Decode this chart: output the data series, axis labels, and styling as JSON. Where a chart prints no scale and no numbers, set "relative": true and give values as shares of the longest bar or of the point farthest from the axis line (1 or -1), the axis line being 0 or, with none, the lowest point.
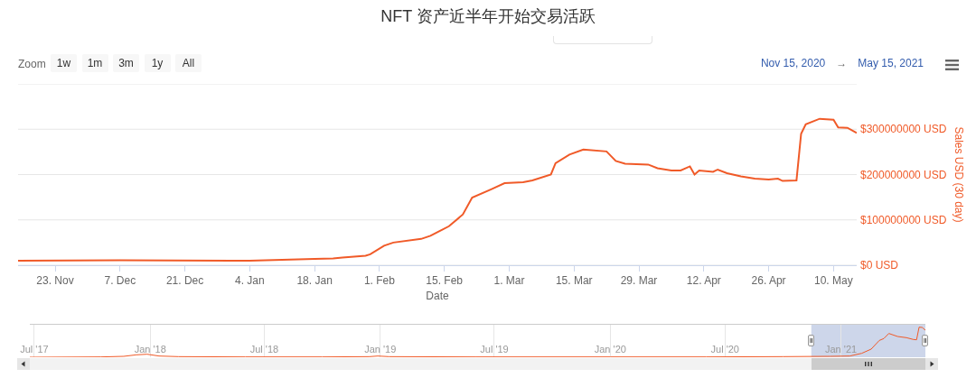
{
  "chart_data": [
    {
      "type": "line",
      "title": "NFT 资产近半年开始交易活跃",
      "xlabel": "Date",
      "ylabel": "Sales USD (30 day)",
      "color": "#f05a28",
      "x": [
        "2020-11-15",
        "2020-12-07",
        "2021-01-04",
        "2021-01-18",
        "2021-01-22",
        "2021-01-24",
        "2021-01-29",
        "2021-01-30",
        "2021-02-02",
        "2021-02-04",
        "2021-02-10",
        "2021-02-12",
        "2021-02-16",
        "2021-02-19",
        "2021-02-21",
        "2021-02-25",
        "2021-02-28",
        "2021-03-04",
        "2021-03-06",
        "2021-03-10",
        "2021-03-11",
        "2021-03-14",
        "2021-03-17",
        "2021-03-22",
        "2021-03-24",
        "2021-03-26",
        "2021-03-31",
        "2021-04-02",
        "2021-04-05",
        "2021-04-07",
        "2021-04-09",
        "2021-04-10",
        "2021-04-11",
        "2021-04-14",
        "2021-04-15",
        "2021-04-17",
        "2021-04-20",
        "2021-04-23",
        "2021-04-26",
        "2021-04-28",
        "2021-04-29",
        "2021-05-02",
        "2021-05-03",
        "2021-05-04",
        "2021-05-07",
        "2021-05-10",
        "2021-05-11",
        "2021-05-13",
        "2021-05-15"
      ],
      "values": [
        10000000,
        11000000,
        10000000,
        14000000,
        15000000,
        17000000,
        21000000,
        24000000,
        43000000,
        50000000,
        58000000,
        65000000,
        86000000,
        112000000,
        149000000,
        167000000,
        181000000,
        183000000,
        187000000,
        200000000,
        225000000,
        244000000,
        255000000,
        251000000,
        230000000,
        224000000,
        222000000,
        214000000,
        209000000,
        209000000,
        218000000,
        200000000,
        209000000,
        206000000,
        211000000,
        203000000,
        196000000,
        191000000,
        189000000,
        191000000,
        186000000,
        187000000,
        290000000,
        311000000,
        323000000,
        321000000,
        304000000,
        303000000,
        292000000
      ],
      "xlim": [
        "2020-11-15",
        "2021-05-15"
      ],
      "xticks": [
        {
          "value": "2020-11-23",
          "label": "23. Nov"
        },
        {
          "value": "2020-12-07",
          "label": "7. Dec"
        },
        {
          "value": "2020-12-21",
          "label": "21. Dec"
        },
        {
          "value": "2021-01-04",
          "label": "4. Jan"
        },
        {
          "value": "2021-01-18",
          "label": "18. Jan"
        },
        {
          "value": "2021-02-01",
          "label": "1. Feb"
        },
        {
          "value": "2021-02-15",
          "label": "15. Feb"
        },
        {
          "value": "2021-03-01",
          "label": "1. Mar"
        },
        {
          "value": "2021-03-15",
          "label": "15. Mar"
        },
        {
          "value": "2021-03-29",
          "label": "29. Mar"
        },
        {
          "value": "2021-04-12",
          "label": "12. Apr"
        },
        {
          "value": "2021-04-26",
          "label": "26. Apr"
        },
        {
          "value": "2021-05-10",
          "label": "10. May"
        }
      ],
      "ylim": [
        0,
        400000000
      ],
      "yticks": [
        {
          "value": 0,
          "label": "$0 USD"
        },
        {
          "value": 100000000,
          "label": "$100000000 USD"
        },
        {
          "value": 200000000,
          "label": "$200000000 USD"
        },
        {
          "value": 300000000,
          "label": "$300000000 USD"
        },
        {
          "value": 400000000,
          "label": null
        }
      ],
      "grid": "y",
      "annotations": [
        "Zoom",
        "1w",
        "1m",
        "3m",
        "1y",
        "All",
        "Nov 15, 2020",
        "→",
        "May 15, 2021"
      ]
    },
    {
      "type": "line",
      "relative": true,
      "color": "#f05a28",
      "x": [
        "2017-06-24",
        "2017-10-15",
        "2017-11-20",
        "2017-12-10",
        "2017-12-27",
        "2018-01-15",
        "2018-02-15",
        "2018-06-01",
        "2018-10-01",
        "2018-12-15",
        "2018-12-28",
        "2019-01-15",
        "2019-06-01",
        "2020-01-01",
        "2020-06-01",
        "2020-10-01",
        "2020-12-15",
        "2021-01-15",
        "2021-02-03",
        "2021-02-18",
        "2021-03-03",
        "2021-03-10",
        "2021-03-18",
        "2021-04-01",
        "2021-04-15",
        "2021-04-26",
        "2021-05-01",
        "2021-05-05",
        "2021-05-10",
        "2021-05-15"
      ],
      "values": [
        0,
        0.01,
        0.03,
        0.08,
        0.1,
        0.04,
        0.02,
        0.01,
        0.01,
        0.02,
        0.04,
        0.02,
        0.01,
        0.01,
        0.01,
        0.02,
        0.03,
        0.04,
        0.13,
        0.27,
        0.56,
        0.62,
        0.79,
        0.69,
        0.65,
        0.59,
        0.58,
        1,
        0.99,
        0.9
      ],
      "xlim": [
        "2017-06-24",
        "2021-05-15"
      ],
      "xticks": [
        {
          "value": "2017-07-01",
          "label": "Jul '17"
        },
        {
          "value": "2018-01-01",
          "label": "Jan '18"
        },
        {
          "value": "2018-07-01",
          "label": "Jul '18"
        },
        {
          "value": "2019-01-01",
          "label": "Jan '19"
        },
        {
          "value": "2019-07-01",
          "label": "Jul '19"
        },
        {
          "value": "2020-01-01",
          "label": "Jan '20"
        },
        {
          "value": "2020-07-01",
          "label": "Jul '20"
        },
        {
          "value": "2021-01-01",
          "label": "Jan '21"
        }
      ],
      "grid": "x",
      "tick_labels": "x",
      "bands": [
        {
          "axis": "x",
          "from": "2020-11-15",
          "to": "2021-05-15",
          "color": "#cdd6ea"
        }
      ]
    }
  ]
}
